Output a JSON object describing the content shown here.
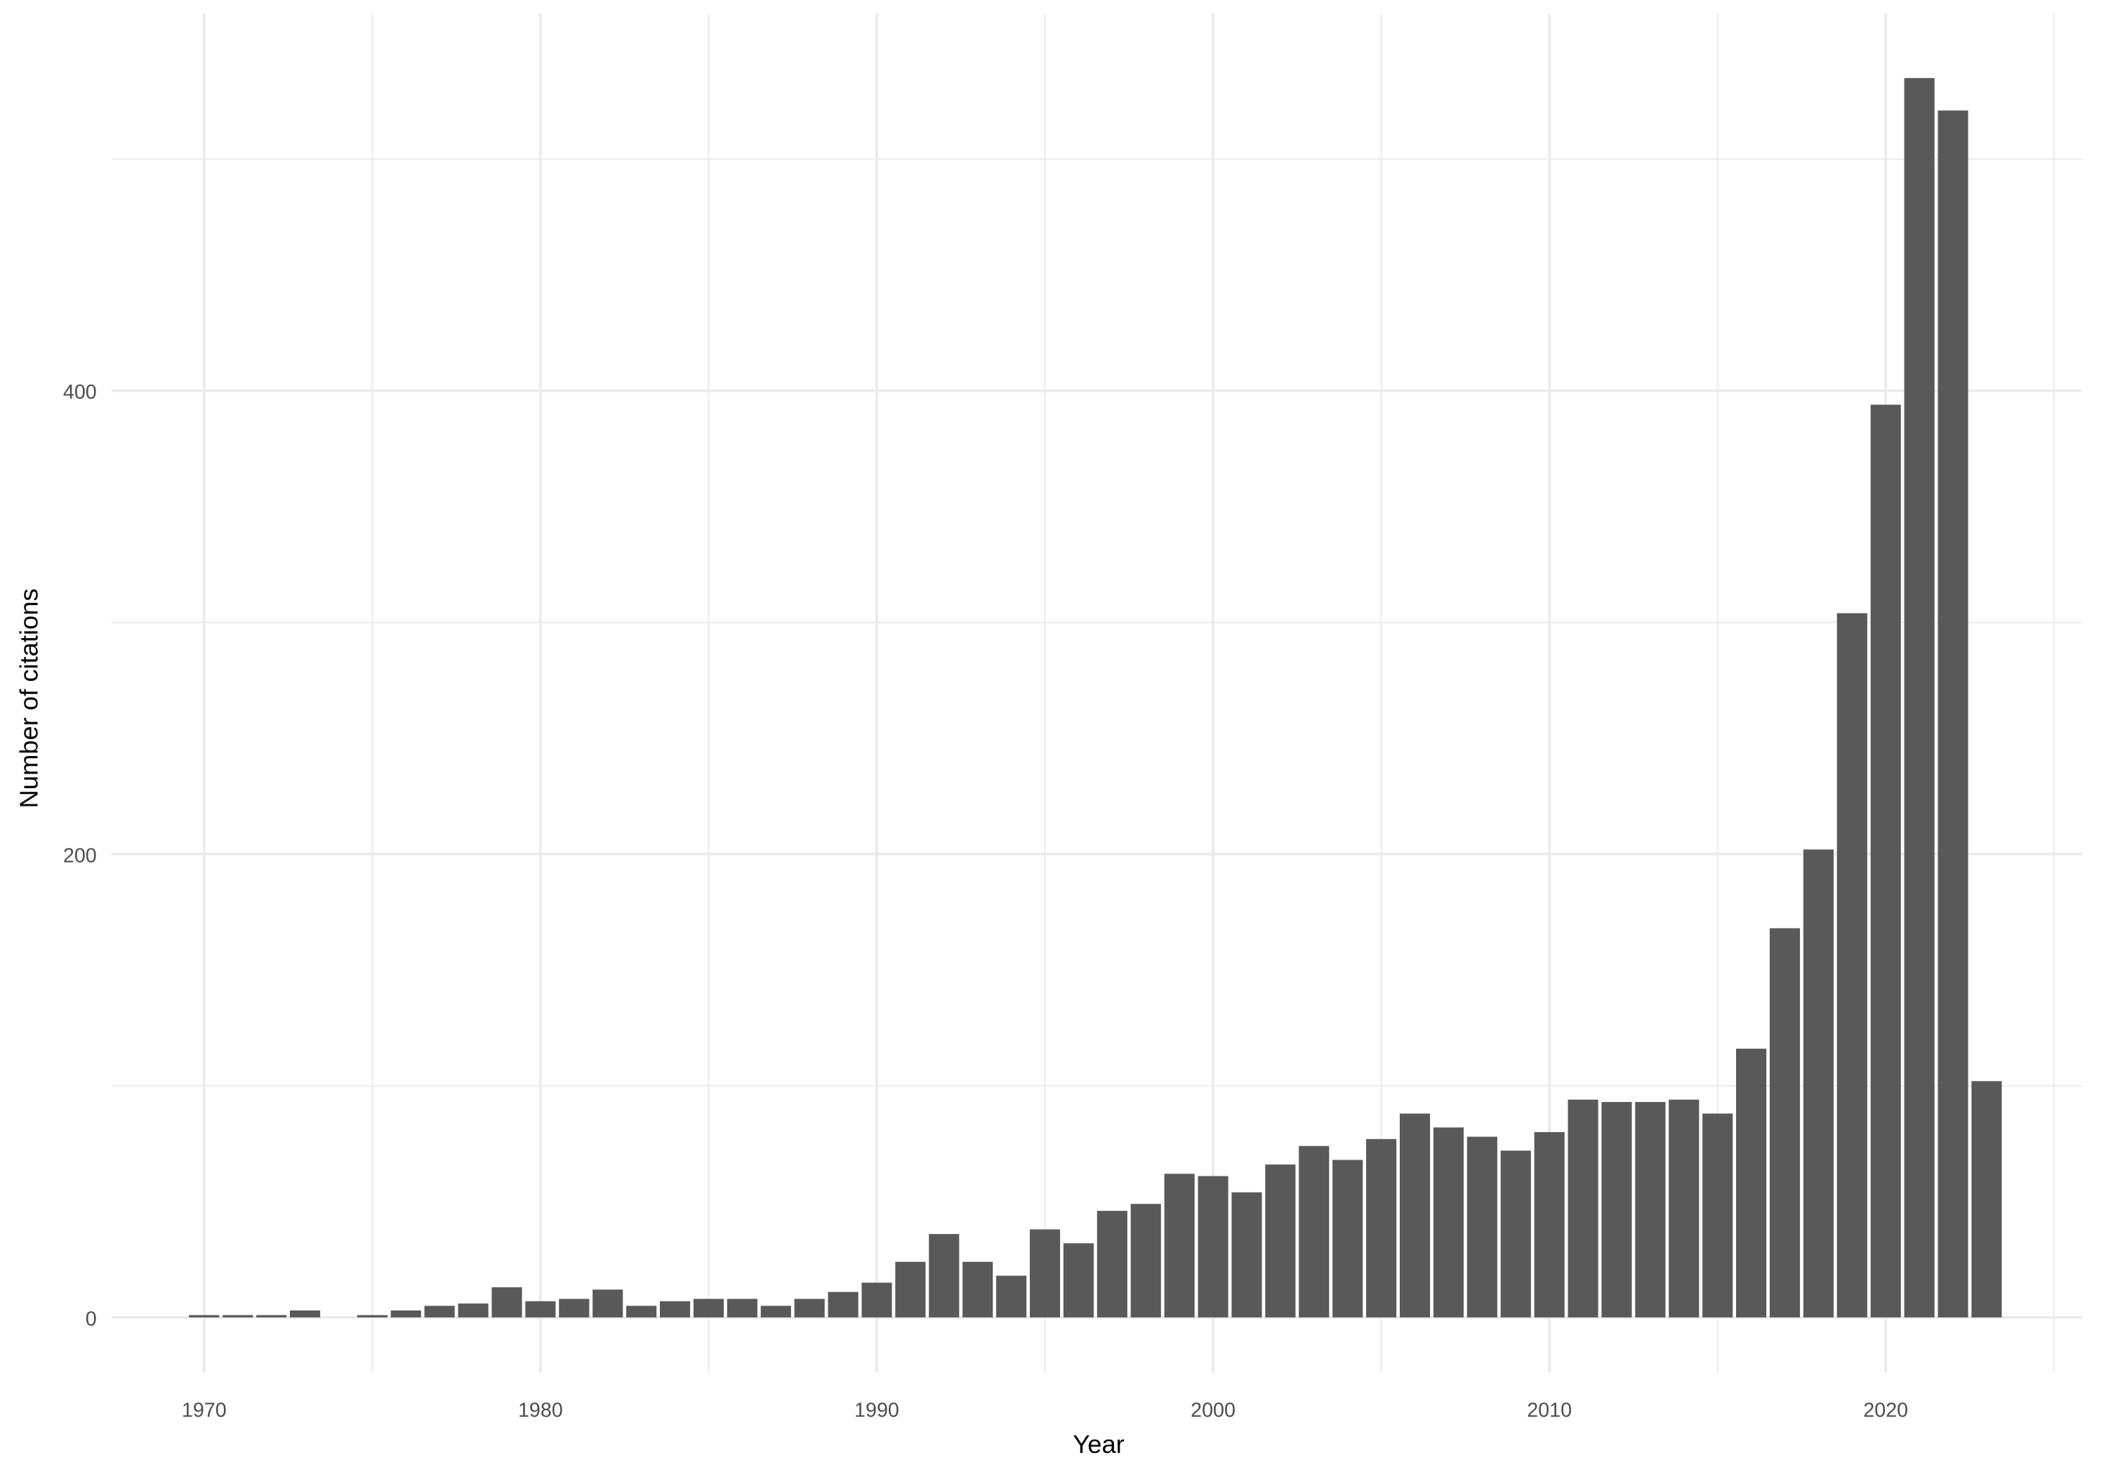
{
  "chart_data": {
    "type": "bar",
    "title": "",
    "xlabel": "Year",
    "ylabel": "Number of citations",
    "x_ticks": [
      "1970",
      "1980",
      "1990",
      "2000",
      "2010",
      "2020"
    ],
    "y_ticks": [
      "0",
      "200",
      "400"
    ],
    "xlim": [
      1967.3,
      2025.9
    ],
    "ylim": [
      -24,
      564
    ],
    "grid": true,
    "bar_color": "#595959",
    "categories": [
      1970,
      1971,
      1972,
      1973,
      1974,
      1975,
      1976,
      1977,
      1978,
      1979,
      1980,
      1981,
      1982,
      1983,
      1984,
      1985,
      1986,
      1987,
      1988,
      1989,
      1990,
      1991,
      1992,
      1993,
      1994,
      1995,
      1996,
      1997,
      1998,
      1999,
      2000,
      2001,
      2002,
      2003,
      2004,
      2005,
      2006,
      2007,
      2008,
      2009,
      2010,
      2011,
      2012,
      2013,
      2014,
      2015,
      2016,
      2017,
      2018,
      2019,
      2020,
      2021,
      2022,
      2023
    ],
    "values": [
      1,
      1,
      1,
      3,
      0,
      1,
      3,
      5,
      6,
      13,
      7,
      8,
      12,
      5,
      7,
      8,
      8,
      5,
      8,
      11,
      15,
      24,
      36,
      24,
      18,
      38,
      32,
      46,
      49,
      62,
      61,
      54,
      66,
      74,
      68,
      77,
      88,
      82,
      78,
      72,
      80,
      94,
      93,
      93,
      94,
      88,
      116,
      168,
      202,
      304,
      394,
      535,
      521,
      102
    ]
  }
}
